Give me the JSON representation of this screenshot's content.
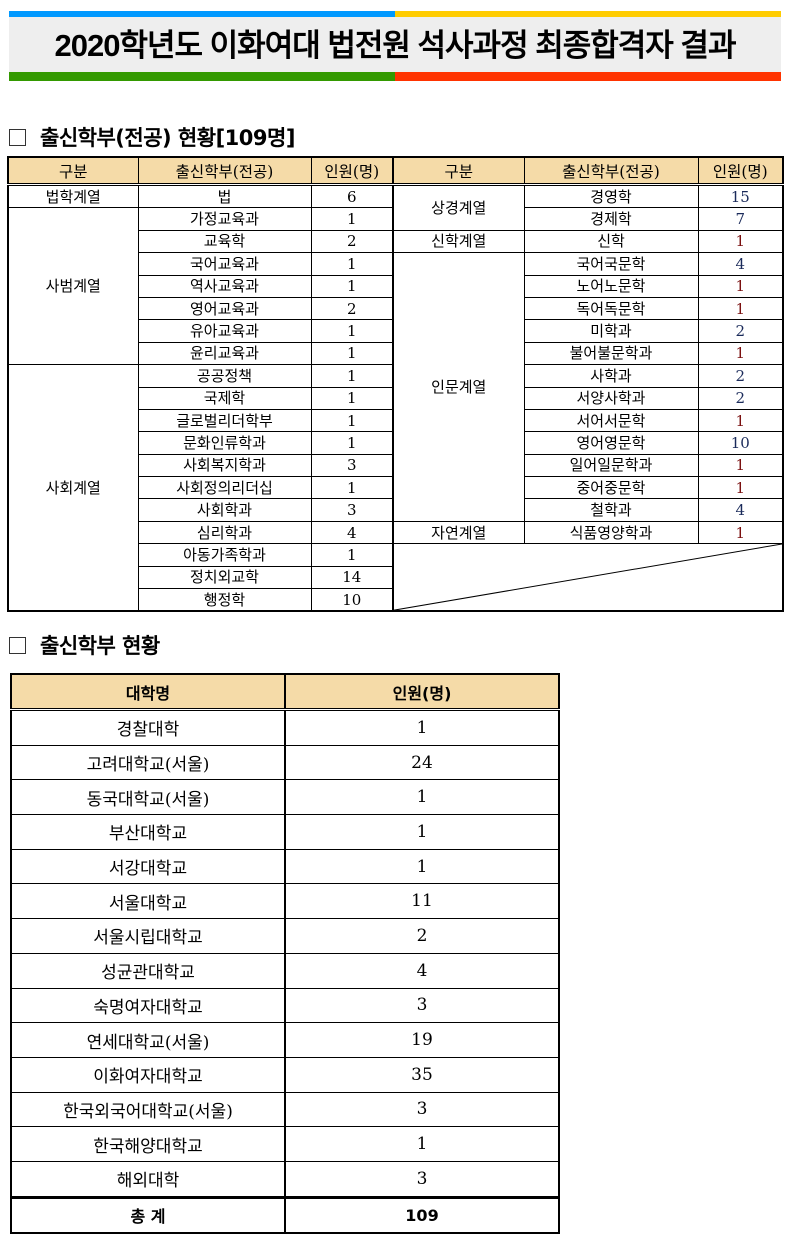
{
  "banner": {
    "title": "2020학년도 이화여대 법전원 석사과정 최종합격자 결과",
    "colors": {
      "top_left": "#0099ff",
      "top_right": "#ffcc00",
      "bottom_left": "#339900",
      "bottom_right": "#ff3300",
      "background": "#eeeeee"
    }
  },
  "section1": {
    "title": "출신학부(전공) 현황[109명]",
    "headers": [
      "구분",
      "출신학부(전공)",
      "인원(명)",
      "구분",
      "출신학부(전공)",
      "인원(명)"
    ],
    "left_groups": [
      {
        "group": "법학계열",
        "items": [
          [
            "법",
            "6"
          ]
        ]
      },
      {
        "group": "사범계열",
        "items": [
          [
            "가정교육과",
            "1"
          ],
          [
            "교육학",
            "2"
          ],
          [
            "국어교육과",
            "1"
          ],
          [
            "역사교육과",
            "1"
          ],
          [
            "영어교육과",
            "2"
          ],
          [
            "유아교육과",
            "1"
          ],
          [
            "윤리교육과",
            "1"
          ]
        ]
      },
      {
        "group": "사회계열",
        "items": [
          [
            "공공정책",
            "1"
          ],
          [
            "국제학",
            "1"
          ],
          [
            "글로벌리더학부",
            "1"
          ],
          [
            "문화인류학과",
            "1"
          ],
          [
            "사회복지학과",
            "3"
          ],
          [
            "사회정의리더십",
            "1"
          ],
          [
            "사회학과",
            "3"
          ],
          [
            "심리학과",
            "4"
          ],
          [
            "아동가족학과",
            "1"
          ],
          [
            "정치외교학",
            "14"
          ],
          [
            "행정학",
            "10"
          ]
        ]
      }
    ],
    "right_groups": [
      {
        "group": "상경계열",
        "items": [
          [
            "경영학",
            "15"
          ],
          [
            "경제학",
            "7"
          ]
        ]
      },
      {
        "group": "신학계열",
        "items": [
          [
            "신학",
            "1"
          ]
        ]
      },
      {
        "group": "인문계열",
        "items": [
          [
            "국어국문학",
            "4"
          ],
          [
            "노어노문학",
            "1"
          ],
          [
            "독어독문학",
            "1"
          ],
          [
            "미학과",
            "2"
          ],
          [
            "불어불문학과",
            "1"
          ],
          [
            "사학과",
            "2"
          ],
          [
            "서양사학과",
            "2"
          ],
          [
            "서어서문학",
            "1"
          ],
          [
            "영어영문학",
            "10"
          ],
          [
            "일어일문학과",
            "1"
          ],
          [
            "중어중문학",
            "1"
          ],
          [
            "철학과",
            "4"
          ]
        ]
      },
      {
        "group": "자연계열",
        "items": [
          [
            "식품영양학과",
            "1"
          ]
        ]
      }
    ]
  },
  "section2": {
    "title": "출신학부 현황",
    "headers": [
      "대학명",
      "인원(명)"
    ],
    "rows": [
      [
        "경찰대학",
        "1"
      ],
      [
        "고려대학교(서울)",
        "24"
      ],
      [
        "동국대학교(서울)",
        "1"
      ],
      [
        "부산대학교",
        "1"
      ],
      [
        "서강대학교",
        "1"
      ],
      [
        "서울대학교",
        "11"
      ],
      [
        "서울시립대학교",
        "2"
      ],
      [
        "성균관대학교",
        "4"
      ],
      [
        "숙명여자대학교",
        "3"
      ],
      [
        "연세대학교(서울)",
        "19"
      ],
      [
        "이화여자대학교",
        "35"
      ],
      [
        "한국외국어대학교(서울)",
        "3"
      ],
      [
        "한국해양대학교",
        "1"
      ],
      [
        "해외대학",
        "3"
      ]
    ],
    "total_label": "총 계",
    "total_value": "109"
  }
}
